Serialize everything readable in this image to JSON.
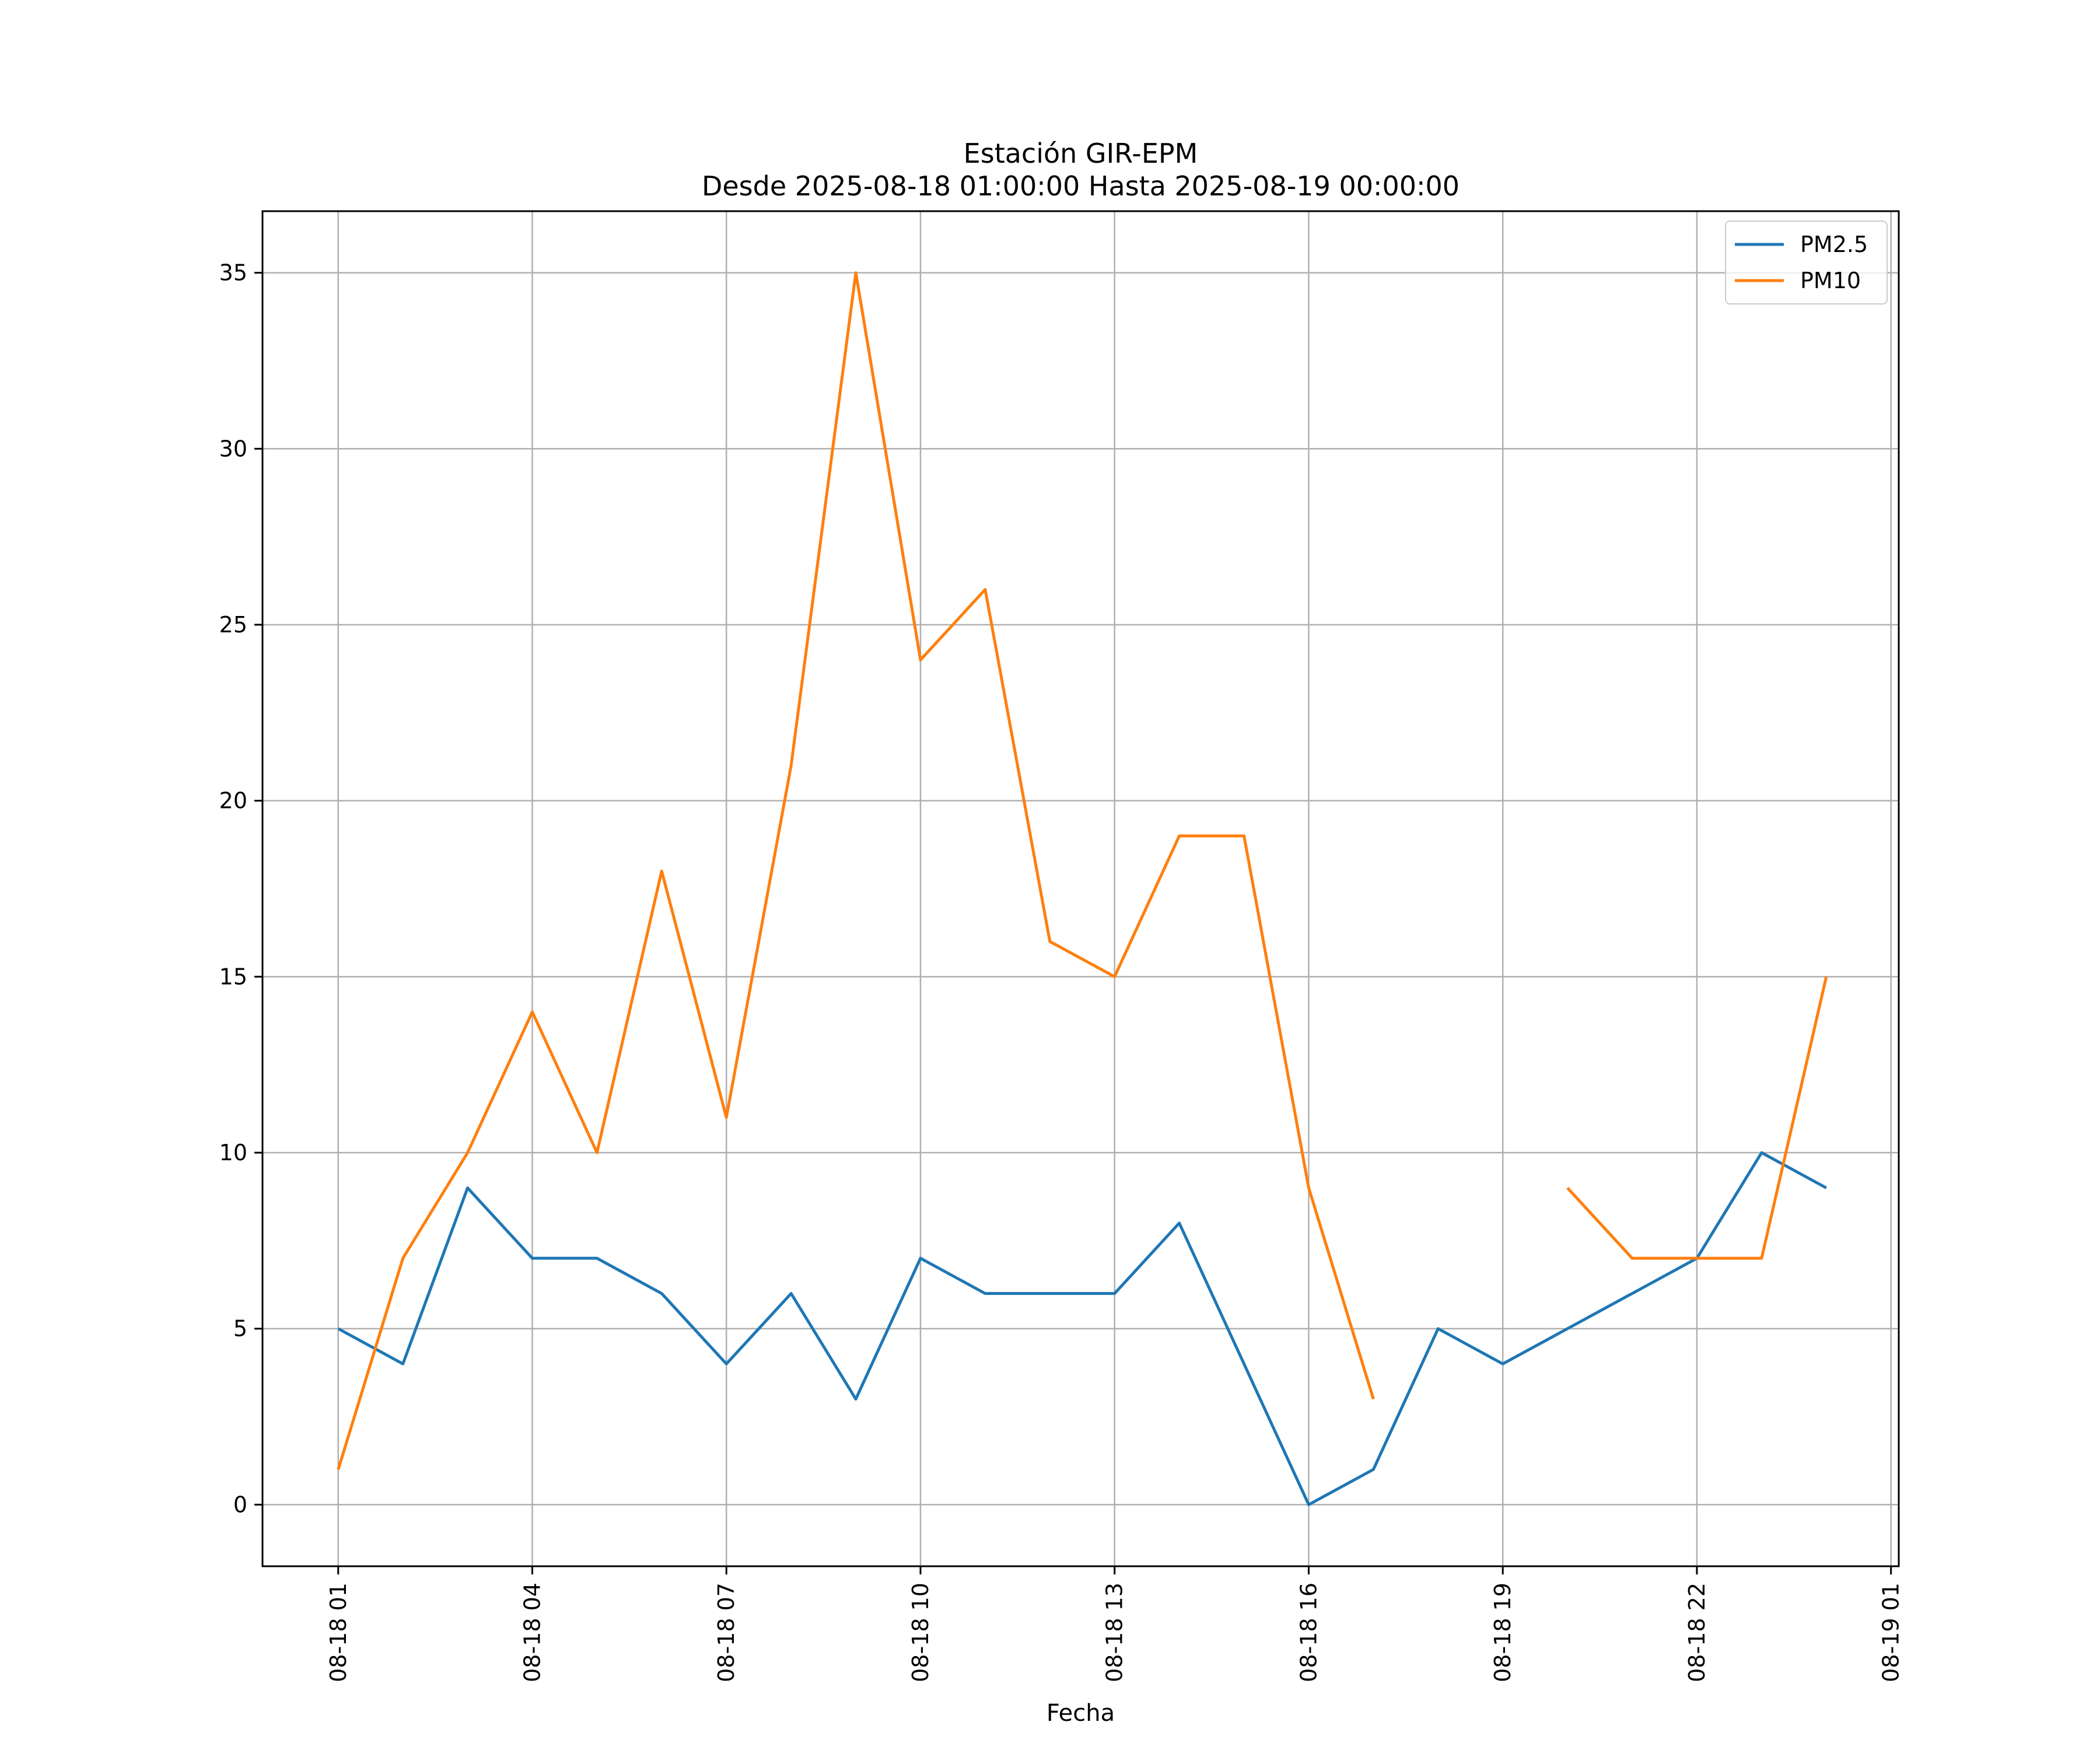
{
  "chart_data": {
    "type": "line",
    "title": "Estación GIR-EPM",
    "subtitle": "Desde 2025-08-18 01:00:00 Hasta 2025-08-19 00:00:00",
    "xlabel": "Fecha",
    "ylabel": "",
    "x_unit": "hours since 2025-08-18 00:00",
    "xlim": [
      -0.17,
      25.12
    ],
    "ylim": [
      -1.75,
      36.75
    ],
    "grid": true,
    "legend_position": "top-right",
    "x": [
      1,
      2,
      3,
      4,
      5,
      6,
      7,
      8,
      9,
      10,
      11,
      12,
      13,
      14,
      15,
      16,
      17,
      18,
      19,
      20,
      21,
      22,
      23,
      24
    ],
    "x_ticks": [
      {
        "value": 1,
        "label": "08-18 01"
      },
      {
        "value": 4,
        "label": "08-18 04"
      },
      {
        "value": 7,
        "label": "08-18 07"
      },
      {
        "value": 10,
        "label": "08-18 10"
      },
      {
        "value": 13,
        "label": "08-18 13"
      },
      {
        "value": 16,
        "label": "08-18 16"
      },
      {
        "value": 19,
        "label": "08-18 19"
      },
      {
        "value": 22,
        "label": "08-18 22"
      },
      {
        "value": 25,
        "label": "08-19 01"
      }
    ],
    "y_ticks": [
      {
        "value": 0,
        "label": "0"
      },
      {
        "value": 5,
        "label": "5"
      },
      {
        "value": 10,
        "label": "10"
      },
      {
        "value": 15,
        "label": "15"
      },
      {
        "value": 20,
        "label": "20"
      },
      {
        "value": 25,
        "label": "25"
      },
      {
        "value": 30,
        "label": "30"
      },
      {
        "value": 35,
        "label": "35"
      }
    ],
    "series": [
      {
        "name": "PM2.5",
        "color": "#1f77b4",
        "values": [
          5,
          4,
          9,
          7,
          7,
          6,
          4,
          6,
          3,
          7,
          6,
          6,
          6,
          8,
          4,
          0,
          1,
          5,
          4,
          5,
          6,
          7,
          10,
          9
        ]
      },
      {
        "name": "PM10",
        "color": "#ff7f0e",
        "values": [
          1,
          7,
          10,
          14,
          10,
          18,
          11,
          21,
          35,
          24,
          26,
          16,
          15,
          19,
          19,
          9,
          3,
          null,
          null,
          9,
          7,
          7,
          7,
          15
        ]
      }
    ],
    "grid_color": "#b0b0b0",
    "axis_color": "#000000"
  }
}
